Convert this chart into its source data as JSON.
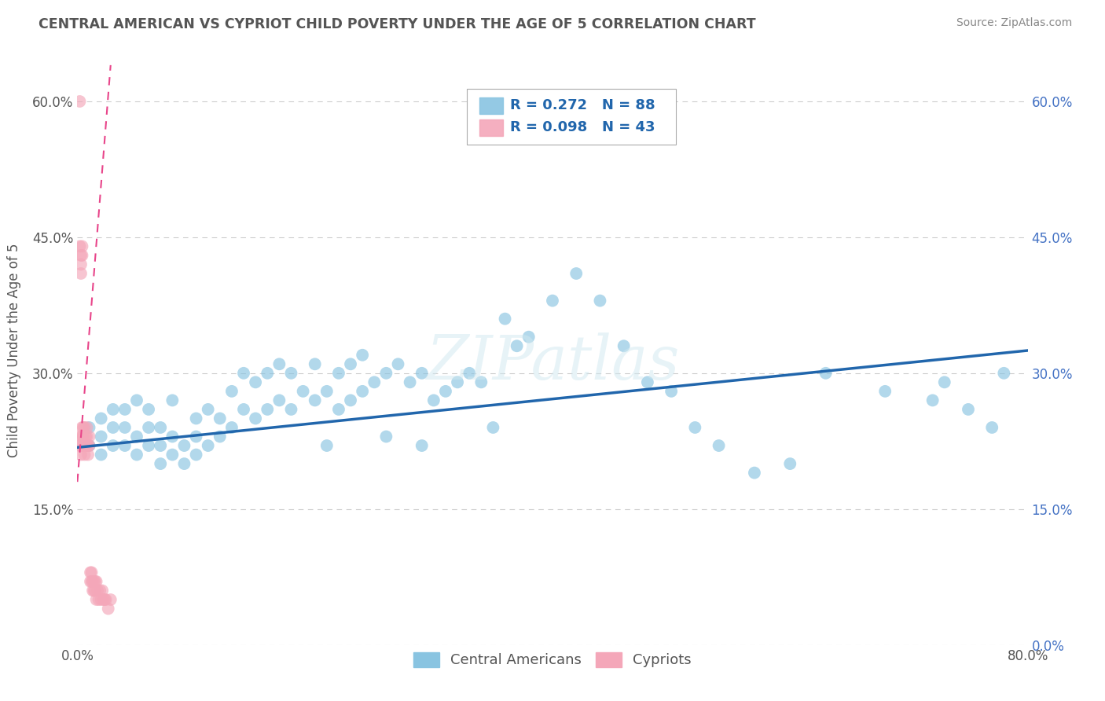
{
  "title": "CENTRAL AMERICAN VS CYPRIOT CHILD POVERTY UNDER THE AGE OF 5 CORRELATION CHART",
  "source": "Source: ZipAtlas.com",
  "ylabel": "Child Poverty Under the Age of 5",
  "xlim": [
    0.0,
    0.8
  ],
  "ylim": [
    0.0,
    0.65
  ],
  "x_ticks": [
    0.0,
    0.1,
    0.2,
    0.3,
    0.4,
    0.5,
    0.6,
    0.7,
    0.8
  ],
  "y_ticks": [
    0.0,
    0.15,
    0.3,
    0.45,
    0.6
  ],
  "legend1_label": "Central Americans",
  "legend2_label": "Cypriots",
  "R1": 0.272,
  "N1": 88,
  "R2": 0.098,
  "N2": 43,
  "blue_color": "#89c4e1",
  "pink_color": "#f4a7b9",
  "blue_line_color": "#2166ac",
  "pink_line_color": "#e8458a",
  "title_color": "#555555",
  "source_color": "#888888",
  "grid_color": "#cccccc",
  "watermark": "ZIPatlas",
  "blue_scatter_x": [
    0.01,
    0.01,
    0.02,
    0.02,
    0.02,
    0.03,
    0.03,
    0.03,
    0.04,
    0.04,
    0.04,
    0.05,
    0.05,
    0.05,
    0.06,
    0.06,
    0.06,
    0.07,
    0.07,
    0.07,
    0.08,
    0.08,
    0.08,
    0.09,
    0.09,
    0.1,
    0.1,
    0.1,
    0.11,
    0.11,
    0.12,
    0.12,
    0.13,
    0.13,
    0.14,
    0.14,
    0.15,
    0.15,
    0.16,
    0.16,
    0.17,
    0.17,
    0.18,
    0.18,
    0.19,
    0.2,
    0.2,
    0.21,
    0.22,
    0.22,
    0.23,
    0.23,
    0.24,
    0.24,
    0.25,
    0.26,
    0.27,
    0.28,
    0.29,
    0.3,
    0.31,
    0.32,
    0.33,
    0.34,
    0.36,
    0.37,
    0.38,
    0.4,
    0.42,
    0.44,
    0.46,
    0.48,
    0.5,
    0.52,
    0.54,
    0.57,
    0.6,
    0.63,
    0.68,
    0.72,
    0.73,
    0.75,
    0.77,
    0.78,
    0.35,
    0.29,
    0.26,
    0.21
  ],
  "blue_scatter_y": [
    0.22,
    0.24,
    0.21,
    0.23,
    0.25,
    0.22,
    0.24,
    0.26,
    0.22,
    0.24,
    0.26,
    0.21,
    0.23,
    0.27,
    0.22,
    0.24,
    0.26,
    0.2,
    0.22,
    0.24,
    0.21,
    0.23,
    0.27,
    0.2,
    0.22,
    0.21,
    0.23,
    0.25,
    0.22,
    0.26,
    0.23,
    0.25,
    0.24,
    0.28,
    0.26,
    0.3,
    0.25,
    0.29,
    0.26,
    0.3,
    0.27,
    0.31,
    0.26,
    0.3,
    0.28,
    0.27,
    0.31,
    0.28,
    0.26,
    0.3,
    0.27,
    0.31,
    0.28,
    0.32,
    0.29,
    0.3,
    0.31,
    0.29,
    0.3,
    0.27,
    0.28,
    0.29,
    0.3,
    0.29,
    0.36,
    0.33,
    0.34,
    0.38,
    0.41,
    0.38,
    0.33,
    0.29,
    0.28,
    0.24,
    0.22,
    0.19,
    0.2,
    0.3,
    0.28,
    0.27,
    0.29,
    0.26,
    0.24,
    0.3,
    0.24,
    0.22,
    0.23,
    0.22
  ],
  "pink_scatter_x": [
    0.002,
    0.003,
    0.003,
    0.004,
    0.004,
    0.004,
    0.005,
    0.005,
    0.005,
    0.006,
    0.006,
    0.006,
    0.007,
    0.007,
    0.008,
    0.008,
    0.008,
    0.009,
    0.009,
    0.01,
    0.01,
    0.011,
    0.011,
    0.012,
    0.012,
    0.013,
    0.013,
    0.014,
    0.014,
    0.015,
    0.015,
    0.016,
    0.016,
    0.017,
    0.018,
    0.019,
    0.02,
    0.021,
    0.022,
    0.023,
    0.024,
    0.026,
    0.028
  ],
  "pink_scatter_y": [
    0.22,
    0.21,
    0.23,
    0.22,
    0.23,
    0.24,
    0.22,
    0.23,
    0.24,
    0.21,
    0.22,
    0.24,
    0.22,
    0.23,
    0.22,
    0.23,
    0.24,
    0.21,
    0.22,
    0.22,
    0.23,
    0.07,
    0.08,
    0.07,
    0.08,
    0.07,
    0.06,
    0.07,
    0.06,
    0.07,
    0.06,
    0.07,
    0.05,
    0.06,
    0.05,
    0.06,
    0.05,
    0.06,
    0.05,
    0.05,
    0.05,
    0.04,
    0.05
  ],
  "pink_scatter_x_extra": [
    0.002,
    0.002,
    0.003,
    0.003,
    0.003,
    0.004,
    0.004
  ],
  "pink_scatter_y_extra": [
    0.6,
    0.44,
    0.43,
    0.42,
    0.41,
    0.44,
    0.43
  ]
}
